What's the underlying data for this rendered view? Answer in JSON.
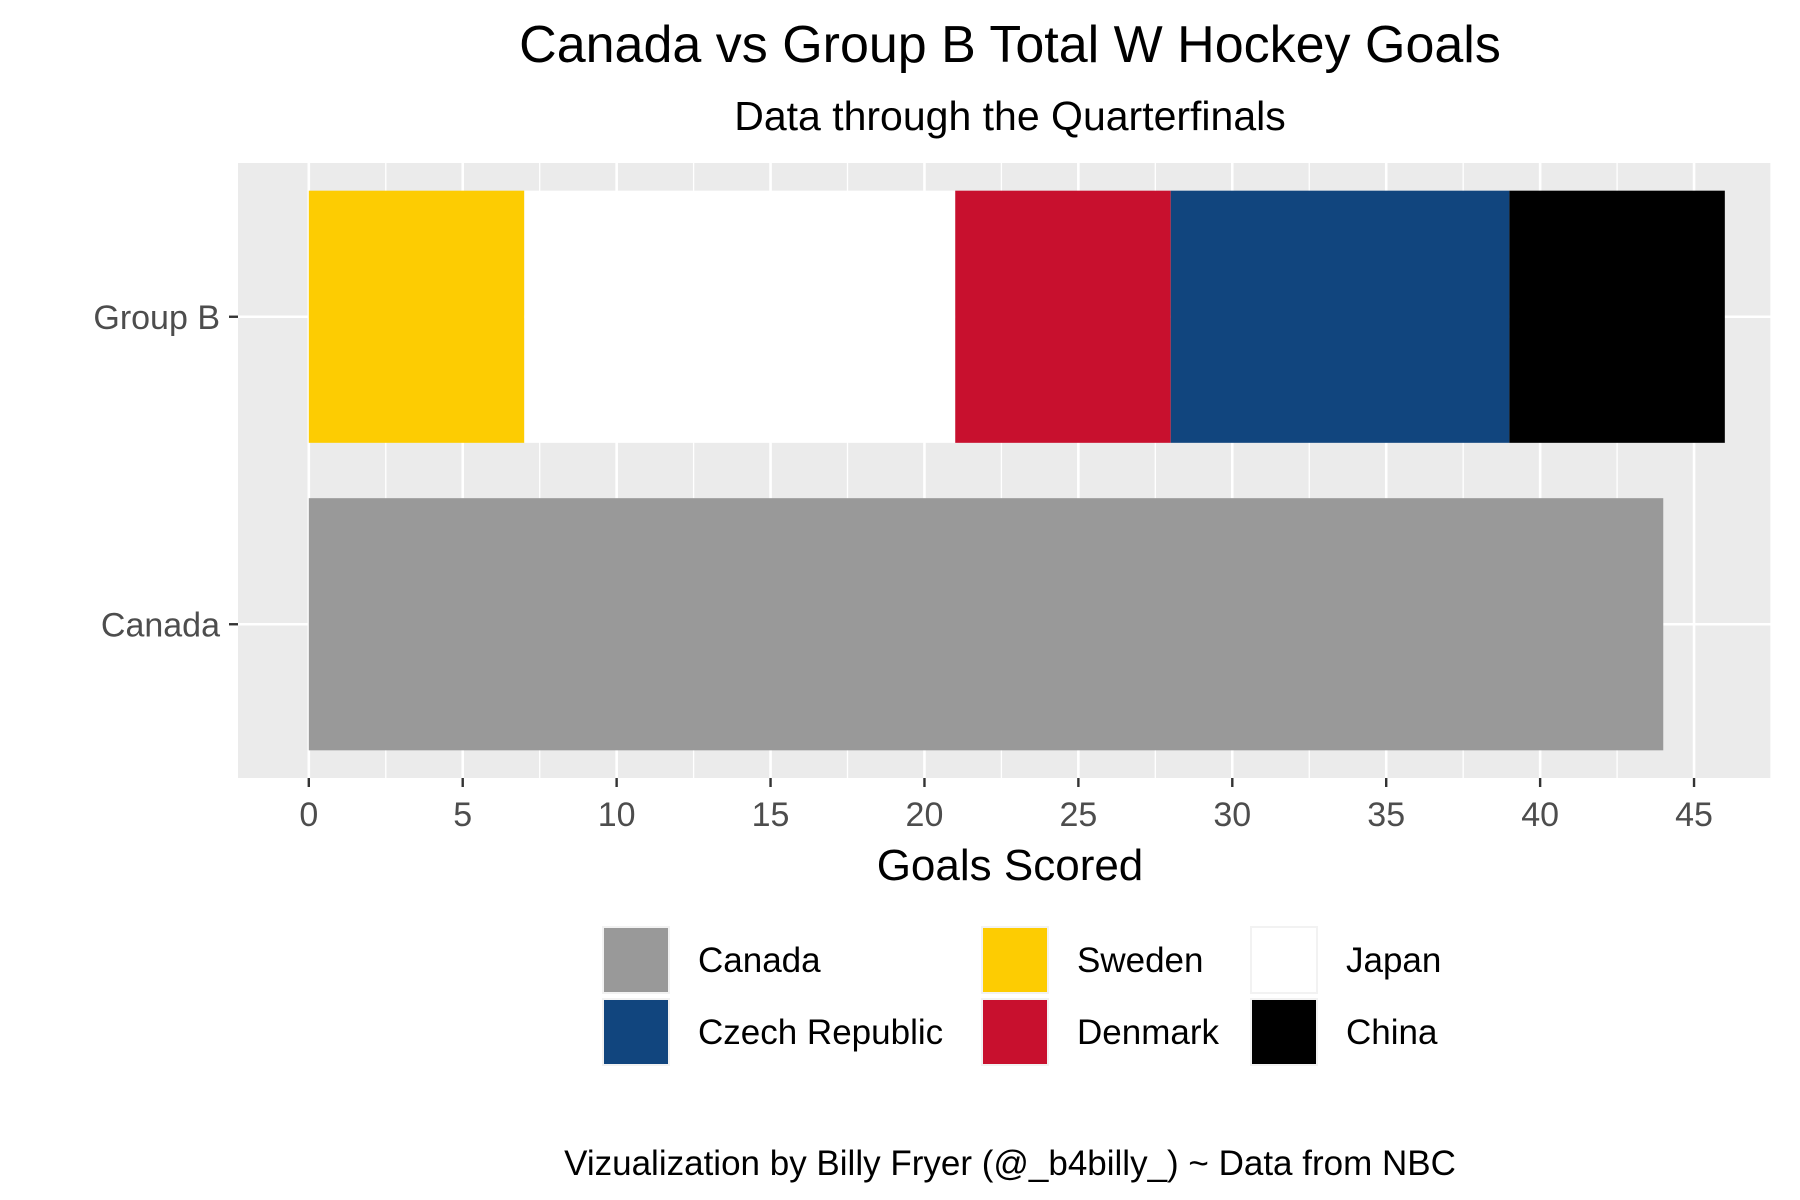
{
  "chart_data": {
    "type": "bar",
    "orientation": "horizontal",
    "stacked": true,
    "title": "Canada vs Group B Total W Hockey Goals",
    "subtitle": "Data through the Quarterfinals",
    "xlabel": "Goals Scored",
    "ylabel": "",
    "xlim": [
      -2.3,
      47.5
    ],
    "x_ticks": [
      0,
      5,
      10,
      15,
      20,
      25,
      30,
      35,
      40,
      45
    ],
    "categories": [
      "Group B",
      "Canada"
    ],
    "series": [
      {
        "name": "Sweden",
        "color": "#FDCC02",
        "category": "Group B",
        "start": 0,
        "value": 7
      },
      {
        "name": "Japan",
        "color": "#FFFFFF",
        "category": "Group B",
        "start": 7,
        "value": 14
      },
      {
        "name": "Denmark",
        "color": "#C8102E",
        "category": "Group B",
        "start": 21,
        "value": 7
      },
      {
        "name": "Czech Republic",
        "color": "#11457E",
        "category": "Group B",
        "start": 28,
        "value": 11
      },
      {
        "name": "China",
        "color": "#000000",
        "category": "Group B",
        "start": 39,
        "value": 7
      },
      {
        "name": "Canada",
        "color": "#999999",
        "category": "Canada",
        "start": 0,
        "value": 44
      }
    ],
    "legend": {
      "position": "bottom",
      "items": [
        {
          "name": "Canada",
          "color": "#999999"
        },
        {
          "name": "Sweden",
          "color": "#FDCC02"
        },
        {
          "name": "Japan",
          "color": "#FFFFFF"
        },
        {
          "name": "Czech Republic",
          "color": "#11457E"
        },
        {
          "name": "Denmark",
          "color": "#C8102E"
        },
        {
          "name": "China",
          "color": "#000000"
        }
      ]
    },
    "caption": "Vizualization by Billy Fryer (@_b4billy_) ~ Data from NBC",
    "panel_background": "#EBEBEB",
    "grid": true
  }
}
